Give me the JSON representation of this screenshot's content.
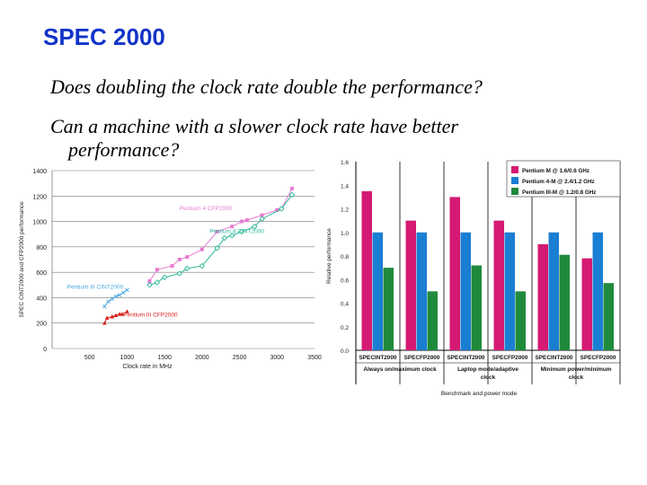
{
  "slide": {
    "title": "SPEC 2000",
    "question1": "Does doubling the clock rate double the performance?",
    "question2_line1": "Can a machine with a slower clock rate have better",
    "question2_line2": "performance?"
  },
  "chart_data": [
    {
      "type": "line",
      "xlabel": "Clock rate in MHz",
      "ylabel": "SPEC CINT2000 and CFP2000 performance",
      "xlim": [
        0,
        3500
      ],
      "ylim": [
        0,
        1400
      ],
      "xticks": [
        0,
        500,
        1000,
        1500,
        2000,
        2500,
        3000,
        3500
      ],
      "yticks": [
        0,
        200,
        400,
        600,
        800,
        1000,
        1200,
        1400
      ],
      "grid": "horizontal",
      "series": [
        {
          "name": "Pentium 4 CFP2000",
          "color": "#e77ad1",
          "marker": "square",
          "points": [
            [
              1300,
              530
            ],
            [
              1400,
              620
            ],
            [
              1600,
              650
            ],
            [
              1700,
              700
            ],
            [
              1800,
              720
            ],
            [
              2000,
              780
            ],
            [
              2200,
              920
            ],
            [
              2400,
              960
            ],
            [
              2530,
              1000
            ],
            [
              2600,
              1010
            ],
            [
              2800,
              1050
            ],
            [
              3000,
              1090
            ],
            [
              3060,
              1100
            ],
            [
              3200,
              1260
            ]
          ]
        },
        {
          "name": "Pentium 4 CINT2000",
          "color": "#2ab595",
          "marker": "diamond",
          "points": [
            [
              1300,
              500
            ],
            [
              1400,
              520
            ],
            [
              1500,
              560
            ],
            [
              1700,
              590
            ],
            [
              1800,
              630
            ],
            [
              2000,
              650
            ],
            [
              2200,
              790
            ],
            [
              2300,
              870
            ],
            [
              2400,
              890
            ],
            [
              2530,
              920
            ],
            [
              2700,
              960
            ],
            [
              2800,
              1020
            ],
            [
              3060,
              1100
            ],
            [
              3200,
              1210
            ]
          ]
        },
        {
          "name": "Pentium III CINT2000",
          "color": "#48a7de",
          "marker": "x",
          "points": [
            [
              700,
              330
            ],
            [
              750,
              370
            ],
            [
              800,
              390
            ],
            [
              850,
              410
            ],
            [
              900,
              420
            ],
            [
              950,
              440
            ],
            [
              1000,
              460
            ]
          ]
        },
        {
          "name": "Pentium III CFP2000",
          "color": "#d72020",
          "marker": "triangle",
          "points": [
            [
              700,
              200
            ],
            [
              733,
              240
            ],
            [
              800,
              250
            ],
            [
              850,
              260
            ],
            [
              900,
              270
            ],
            [
              933,
              270
            ],
            [
              1000,
              290
            ]
          ]
        }
      ]
    },
    {
      "type": "bar",
      "xlabel": "Benchmark and power mode",
      "ylabel": "Relative performance",
      "ylim": [
        0,
        1.6
      ],
      "yticks": [
        0.0,
        0.2,
        0.4,
        0.6,
        0.8,
        1.0,
        1.2,
        1.4,
        1.6
      ],
      "legend_position": "top-right",
      "categories": [
        "SPECINT2000",
        "SPECFP2000",
        "SPECINT2000",
        "SPECFP2000",
        "SPECINT2000",
        "SPECFP2000"
      ],
      "groups": [
        {
          "label_line1": "Always on/maximum clock",
          "label_line2": ""
        },
        {
          "label_line1": "Laptop mode/adaptive",
          "label_line2": "clock"
        },
        {
          "label_line1": "Minimum power/minimum",
          "label_line2": "clock"
        }
      ],
      "series": [
        {
          "name": "Pentium M @ 1.6/0.6 GHz",
          "color": "#d41a72",
          "values": [
            1.35,
            1.1,
            1.3,
            1.1,
            0.9,
            0.78
          ]
        },
        {
          "name": "Pentium 4-M @ 2.4/1.2 GHz",
          "color": "#1a7ed3",
          "values": [
            1.0,
            1.0,
            1.0,
            1.0,
            1.0,
            1.0
          ]
        },
        {
          "name": "Pentium III-M @ 1.2/0.8 GHz",
          "color": "#1f8a3c",
          "values": [
            0.7,
            0.5,
            0.72,
            0.5,
            0.81,
            0.57
          ]
        }
      ]
    }
  ]
}
